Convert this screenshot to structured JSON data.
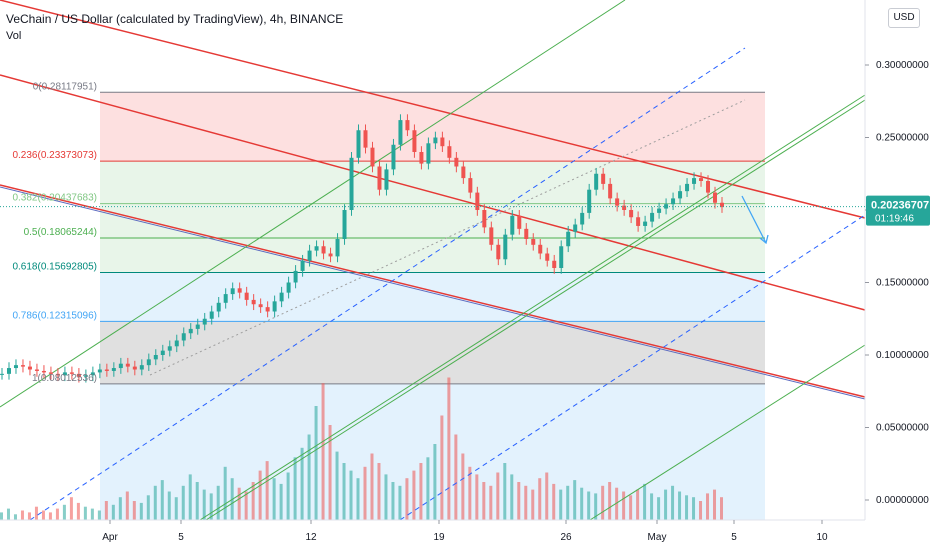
{
  "header": {
    "title": "VeChain / US Dollar (calculated by TradingView), 4h, BINANCE",
    "sub": "Vol",
    "currency_button": "USD"
  },
  "price_badge": {
    "price": "0.20236707",
    "countdown": "01:19:46",
    "color": "#26a69a"
  },
  "colors": {
    "up": "#26a69a",
    "down": "#ef5350",
    "red_line": "#e53935",
    "green_line": "#4caf50",
    "blue_dash": "#2962ff",
    "fib_zone_top": "#fde0e0",
    "fib_zone_2": "#e8f5e9",
    "fib_zone_blue": "#e3f2fd",
    "fib_zone_grey": "#e0e0e0"
  },
  "chart_data": {
    "type": "candlestick",
    "title": "VeChain / US Dollar (calculated by TradingView), 4h, BINANCE",
    "y_ticks": [
      "0.30000000",
      "0.25000000",
      "0.20000000",
      "0.15000000",
      "0.10000000",
      "0.05000000",
      "0.00000000"
    ],
    "x_ticks": [
      "Apr",
      "5",
      "12",
      "19",
      "26",
      "May",
      "5",
      "10"
    ],
    "ylim": [
      -0.01,
      0.34
    ],
    "fib_levels": [
      {
        "ratio": "0",
        "value": "0.28117951",
        "label": "0(0.28117951)",
        "color": "#787b86"
      },
      {
        "ratio": "0.236",
        "value": "0.23373073",
        "label": "0.236(0.23373073)",
        "color": "#e53935"
      },
      {
        "ratio": "0.382",
        "value": "0.20437683",
        "label": "0.382(0.20437683)",
        "color": "#81c784"
      },
      {
        "ratio": "0.5",
        "value": "0.18065244",
        "label": "0.5(0.18065244)",
        "color": "#4caf50"
      },
      {
        "ratio": "0.618",
        "value": "0.15692805",
        "label": "0.618(0.15692805)",
        "color": "#00897b"
      },
      {
        "ratio": "0.786",
        "value": "0.12315096",
        "label": "0.786(0.12315096)",
        "color": "#42a5f5"
      },
      {
        "ratio": "1",
        "value": "0.08012536",
        "label": "1(0.08012536)",
        "color": "#787b86"
      }
    ],
    "price_series_close": [
      0.087,
      0.091,
      0.093,
      0.092,
      0.09,
      0.089,
      0.088,
      0.087,
      0.086,
      0.088,
      0.087,
      0.085,
      0.086,
      0.088,
      0.09,
      0.089,
      0.091,
      0.094,
      0.092,
      0.09,
      0.093,
      0.097,
      0.1,
      0.103,
      0.106,
      0.11,
      0.115,
      0.118,
      0.121,
      0.125,
      0.13,
      0.136,
      0.142,
      0.146,
      0.143,
      0.138,
      0.135,
      0.133,
      0.13,
      0.137,
      0.143,
      0.15,
      0.158,
      0.165,
      0.172,
      0.175,
      0.17,
      0.168,
      0.18,
      0.2,
      0.236,
      0.255,
      0.243,
      0.23,
      0.214,
      0.228,
      0.245,
      0.262,
      0.255,
      0.24,
      0.232,
      0.246,
      0.25,
      0.244,
      0.236,
      0.23,
      0.222,
      0.212,
      0.2,
      0.188,
      0.176,
      0.166,
      0.183,
      0.196,
      0.187,
      0.18,
      0.176,
      0.17,
      0.165,
      0.16,
      0.175,
      0.185,
      0.19,
      0.198,
      0.214,
      0.225,
      0.218,
      0.208,
      0.203,
      0.2,
      0.195,
      0.189,
      0.192,
      0.198,
      0.201,
      0.204,
      0.208,
      0.213,
      0.218,
      0.222,
      0.22,
      0.212,
      0.205,
      0.202
    ],
    "volume": [
      0.004,
      0.006,
      0.003,
      0.005,
      0.004,
      0.007,
      0.005,
      0.004,
      0.006,
      0.008,
      0.012,
      0.009,
      0.007,
      0.006,
      0.005,
      0.01,
      0.008,
      0.012,
      0.015,
      0.01,
      0.009,
      0.013,
      0.018,
      0.021,
      0.015,
      0.012,
      0.018,
      0.024,
      0.02,
      0.016,
      0.014,
      0.018,
      0.028,
      0.022,
      0.017,
      0.015,
      0.02,
      0.026,
      0.031,
      0.022,
      0.019,
      0.025,
      0.033,
      0.038,
      0.045,
      0.06,
      0.072,
      0.05,
      0.036,
      0.03,
      0.026,
      0.022,
      0.028,
      0.035,
      0.03,
      0.024,
      0.02,
      0.018,
      0.022,
      0.026,
      0.03,
      0.033,
      0.04,
      0.055,
      0.075,
      0.045,
      0.035,
      0.028,
      0.024,
      0.02,
      0.018,
      0.025,
      0.03,
      0.024,
      0.02,
      0.018,
      0.016,
      0.022,
      0.025,
      0.019,
      0.016,
      0.018,
      0.021,
      0.017,
      0.015,
      0.014,
      0.018,
      0.02,
      0.017,
      0.015,
      0.013,
      0.016,
      0.019,
      0.014,
      0.012,
      0.016,
      0.018,
      0.015,
      0.013,
      0.012,
      0.01,
      0.014,
      0.016,
      0.012
    ]
  }
}
